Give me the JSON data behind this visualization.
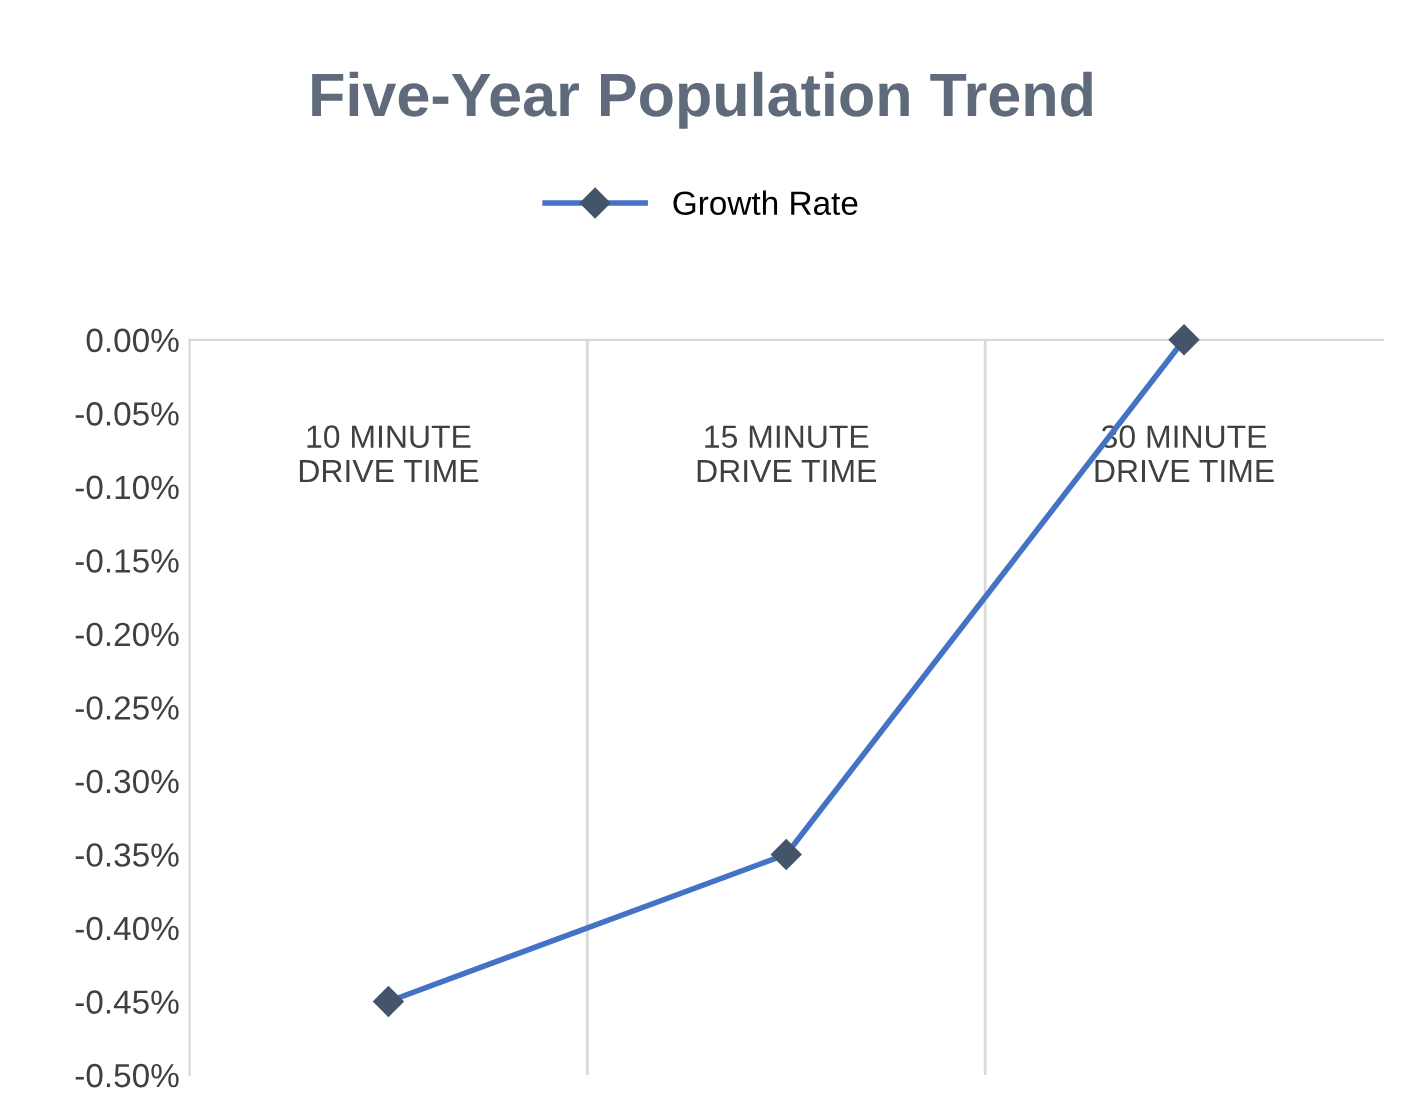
{
  "chart_data": {
    "type": "line",
    "title": "Five-Year Population Trend",
    "categories": [
      "10 MINUTE DRIVE TIME",
      "15 MINUTE DRIVE TIME",
      "30 MINUTE DRIVE TIME"
    ],
    "series": [
      {
        "name": "Growth Rate",
        "color": "#4472c4",
        "values": [
          -0.45,
          -0.35,
          0.0
        ]
      }
    ],
    "ylim": [
      -0.5,
      0
    ],
    "yticks": [
      {
        "value": 0,
        "label": "0.00%"
      },
      {
        "value": -0.05,
        "label": "-0.05%"
      },
      {
        "value": -0.1,
        "label": "-0.10%"
      },
      {
        "value": -0.15,
        "label": "-0.15%"
      },
      {
        "value": -0.2,
        "label": "-0.20%"
      },
      {
        "value": -0.25,
        "label": "-0.25%"
      },
      {
        "value": -0.3,
        "label": "-0.30%"
      },
      {
        "value": -0.35,
        "label": "-0.35%"
      },
      {
        "value": -0.4,
        "label": "-0.40%"
      },
      {
        "value": -0.45,
        "label": "-0.45%"
      },
      {
        "value": -0.5,
        "label": "-0.50%"
      }
    ],
    "grid": "x",
    "legend": "top",
    "marker": "diamond",
    "line_style": "solid"
  }
}
